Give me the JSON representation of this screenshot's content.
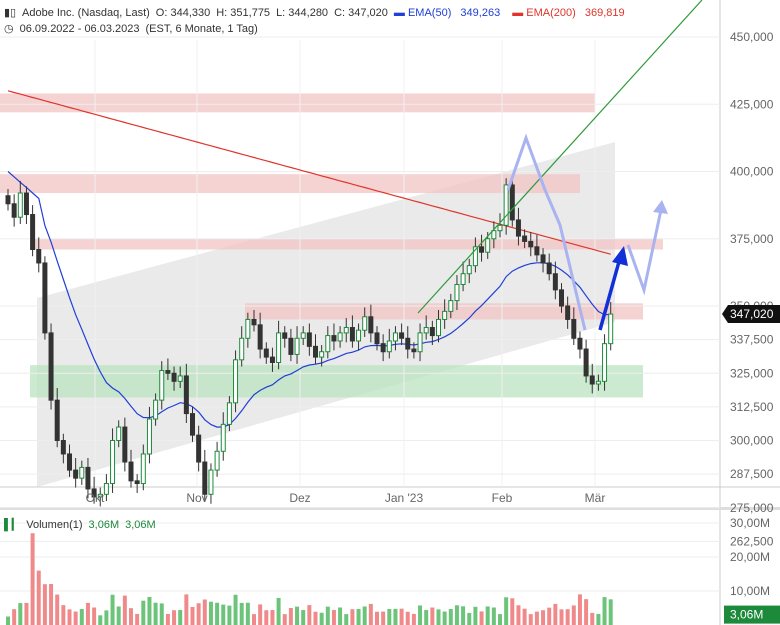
{
  "header": {
    "instrument": "Adobe Inc. (Nasdaq, Last)",
    "open": "O: 344,330",
    "high": "H: 351,775",
    "low": "L: 344,280",
    "close": "C: 347,020",
    "ema50_label": "EMA(50)",
    "ema50_value": "349,263",
    "ema200_label": "EMA(200)",
    "ema200_value": "369,819",
    "period": "06.09.2022 - 06.03.2023",
    "period_info": "(EST, 6 Monate, 1 Tag)"
  },
  "volume_panel": {
    "label": "Volumen(1)",
    "value1": "3,06M",
    "value2": "3,06M",
    "current_badge": "3,06M"
  },
  "price_badge": "347,020",
  "colors": {
    "up": "#1c8a3a",
    "down": "#222222",
    "ema50": "#1f3fd8",
    "ema200": "#e0352b",
    "resistance_zone": "#f2c4c4",
    "support_zone": "#b9e3bf",
    "channel": "#d9d9d9",
    "trendline": "#2e9a3a",
    "arrow_projection": "#a9b3f0",
    "arrow_solid": "#1230d8",
    "vol_up": "#6cc47a",
    "vol_down": "#f08a8a"
  },
  "chart_data": {
    "type": "candlestick",
    "price_axis": {
      "ticks": [
        "450,000",
        "425,000",
        "400,000",
        "375,000",
        "350,000",
        "337,500",
        "325,000",
        "312,500",
        "300,000",
        "287,500",
        "275,000",
        "262,500"
      ],
      "values": [
        450,
        425,
        400,
        375,
        350,
        337.5,
        325,
        312.5,
        300,
        287.5,
        275,
        262.5
      ]
    },
    "x_axis": {
      "labels": [
        "Okt",
        "Nov",
        "Dez",
        "Jan '23",
        "Feb",
        "Mär"
      ],
      "dates": [
        "2022-10-01",
        "2022-11-01",
        "2022-12-01",
        "2023-01-01",
        "2023-02-01",
        "2023-03-01"
      ]
    },
    "volume_axis": {
      "ticks": [
        "30,00M",
        "20,00M",
        "10,00M"
      ],
      "values": [
        30,
        20,
        10
      ]
    },
    "zones": [
      {
        "kind": "resistance",
        "low": 422,
        "high": 429
      },
      {
        "kind": "resistance",
        "low": 392,
        "high": 399
      },
      {
        "kind": "resistance",
        "low": 371,
        "high": 375
      },
      {
        "kind": "resistance",
        "low": 345,
        "high": 351
      },
      {
        "kind": "support",
        "low": 316,
        "high": 328
      }
    ],
    "closes": [
      388,
      383,
      392,
      384,
      371,
      366,
      340,
      315,
      300,
      295,
      289,
      286,
      290,
      282,
      279,
      280,
      284,
      300,
      305,
      292,
      285,
      284,
      295,
      308,
      315,
      326,
      325,
      322,
      324,
      310,
      302,
      292,
      280,
      289,
      296,
      306,
      314,
      330,
      338,
      345,
      343,
      334,
      331,
      329,
      340,
      338,
      332,
      338,
      340,
      335,
      331,
      333,
      339,
      337,
      340,
      342,
      337,
      341,
      346,
      340,
      336,
      333,
      337,
      340,
      338,
      334,
      333,
      340,
      342,
      339,
      345,
      348,
      352,
      358,
      362,
      365,
      372,
      370,
      375,
      378,
      380,
      395,
      382,
      376,
      374,
      372,
      369,
      366,
      362,
      356,
      350,
      345,
      338,
      334,
      324,
      321,
      322,
      336,
      347
    ]
  }
}
